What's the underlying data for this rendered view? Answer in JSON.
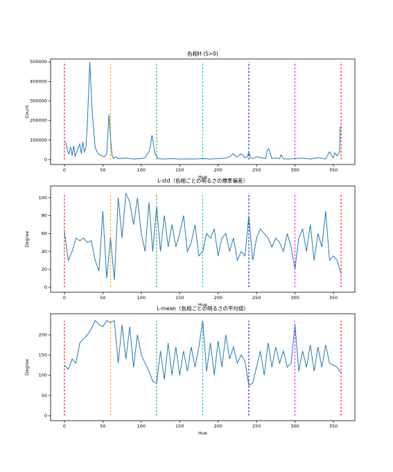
{
  "chart_data": [
    {
      "type": "line",
      "title": "色相H (S>0)",
      "x_label": "Hue",
      "y_label": "Count",
      "x": [
        0,
        2,
        4,
        6,
        8,
        10,
        12,
        14,
        16,
        18,
        20,
        22,
        24,
        26,
        28,
        30,
        33,
        36,
        40,
        44,
        48,
        52,
        55,
        58,
        60,
        62,
        64,
        66,
        70,
        80,
        90,
        100,
        105,
        108,
        110,
        112,
        114,
        118,
        122,
        130,
        140,
        150,
        160,
        170,
        180,
        190,
        200,
        210,
        215,
        218,
        220,
        222,
        225,
        230,
        235,
        238,
        240,
        242,
        245,
        250,
        255,
        262,
        264,
        266,
        270,
        275,
        280,
        282,
        285,
        290,
        300,
        310,
        320,
        330,
        340,
        345,
        348,
        350,
        352,
        355,
        358,
        359
      ],
      "series": [
        {
          "color": "#1f77b4",
          "values": [
            90000,
            85000,
            45000,
            30000,
            65000,
            20000,
            70000,
            15000,
            40000,
            60000,
            80000,
            30000,
            90000,
            40000,
            60000,
            200000,
            500000,
            250000,
            60000,
            30000,
            20000,
            15000,
            30000,
            230000,
            110000,
            20000,
            5000,
            15000,
            5000,
            8000,
            3000,
            5000,
            10000,
            30000,
            40000,
            70000,
            125000,
            30000,
            5000,
            3000,
            5000,
            3000,
            4000,
            3000,
            5000,
            3000,
            5000,
            8000,
            15000,
            25000,
            30000,
            20000,
            15000,
            30000,
            10000,
            15000,
            40000,
            10000,
            5000,
            15000,
            10000,
            5000,
            50000,
            55000,
            5000,
            8000,
            5000,
            25000,
            5000,
            3000,
            5000,
            8000,
            3000,
            10000,
            3000,
            40000,
            20000,
            10000,
            35000,
            20000,
            40000,
            170000
          ]
        }
      ],
      "xlim": [
        -18,
        378
      ],
      "xticks": [
        0,
        50,
        100,
        150,
        200,
        250,
        300,
        350
      ],
      "ylim": [
        -25000,
        515000
      ],
      "yticks": [
        0,
        100000,
        200000,
        300000,
        400000,
        500000
      ],
      "vlines": [
        {
          "x": 0,
          "color": "#ff0000"
        },
        {
          "x": 60,
          "color": "#ffa500"
        },
        {
          "x": 120,
          "color": "#2ca02c"
        },
        {
          "x": 180,
          "color": "#17becf"
        },
        {
          "x": 240,
          "color": "#0000ff"
        },
        {
          "x": 300,
          "color": "#ff00ff"
        },
        {
          "x": 360,
          "color": "#ff0000"
        }
      ]
    },
    {
      "type": "line",
      "title": "L-std（色相ごとの明るさの標準偏差）",
      "x_label": "Hue",
      "y_label": "Degree",
      "x": [
        0,
        5,
        10,
        15,
        20,
        25,
        30,
        35,
        40,
        45,
        50,
        55,
        60,
        65,
        70,
        75,
        80,
        85,
        90,
        95,
        100,
        105,
        110,
        115,
        120,
        125,
        130,
        135,
        140,
        145,
        150,
        155,
        160,
        165,
        170,
        175,
        180,
        185,
        190,
        195,
        200,
        205,
        210,
        215,
        220,
        225,
        230,
        235,
        240,
        245,
        250,
        255,
        260,
        265,
        270,
        275,
        280,
        285,
        290,
        295,
        300,
        305,
        310,
        315,
        320,
        325,
        330,
        335,
        340,
        345,
        350,
        355,
        360
      ],
      "series": [
        {
          "color": "#1f77b4",
          "values": [
            62,
            30,
            40,
            55,
            52,
            55,
            50,
            52,
            30,
            18,
            85,
            10,
            55,
            8,
            100,
            55,
            105,
            95,
            70,
            100,
            60,
            40,
            95,
            40,
            90,
            40,
            80,
            45,
            70,
            45,
            60,
            80,
            40,
            50,
            70,
            35,
            40,
            60,
            55,
            65,
            35,
            55,
            60,
            40,
            55,
            30,
            40,
            35,
            80,
            30,
            55,
            65,
            60,
            55,
            45,
            55,
            50,
            40,
            60,
            45,
            20,
            55,
            65,
            40,
            70,
            30,
            60,
            45,
            85,
            30,
            35,
            30,
            15
          ]
        }
      ],
      "xlim": [
        -18,
        378
      ],
      "xticks": [
        0,
        50,
        100,
        150,
        200,
        250,
        300,
        350
      ],
      "ylim": [
        -5.5,
        113
      ],
      "yticks": [
        0,
        20,
        40,
        60,
        80,
        100
      ],
      "vlines": [
        {
          "x": 0,
          "color": "#ff0000"
        },
        {
          "x": 60,
          "color": "#ffa500"
        },
        {
          "x": 120,
          "color": "#2ca02c"
        },
        {
          "x": 180,
          "color": "#17becf"
        },
        {
          "x": 240,
          "color": "#0000ff"
        },
        {
          "x": 300,
          "color": "#ff00ff"
        },
        {
          "x": 360,
          "color": "#ff0000"
        }
      ]
    },
    {
      "type": "line",
      "title": "L-mean（色相ごとの明るさの平均値）",
      "x_label": "Hue",
      "y_label": "Degree",
      "x": [
        0,
        5,
        10,
        15,
        20,
        25,
        30,
        35,
        40,
        45,
        50,
        55,
        60,
        65,
        70,
        75,
        80,
        85,
        90,
        95,
        100,
        105,
        110,
        115,
        120,
        125,
        130,
        135,
        140,
        145,
        150,
        155,
        160,
        165,
        170,
        175,
        180,
        185,
        190,
        195,
        200,
        205,
        210,
        215,
        220,
        225,
        230,
        235,
        240,
        245,
        250,
        255,
        260,
        265,
        270,
        275,
        280,
        285,
        290,
        295,
        300,
        305,
        310,
        315,
        320,
        325,
        330,
        335,
        340,
        345,
        350,
        355,
        360
      ],
      "series": [
        {
          "color": "#1f77b4",
          "values": [
            125,
            115,
            140,
            130,
            180,
            190,
            200,
            215,
            235,
            225,
            220,
            235,
            230,
            235,
            130,
            225,
            140,
            220,
            120,
            200,
            150,
            130,
            110,
            85,
            80,
            160,
            90,
            180,
            100,
            170,
            100,
            160,
            110,
            170,
            120,
            170,
            235,
            110,
            180,
            100,
            185,
            120,
            200,
            140,
            170,
            130,
            150,
            135,
            75,
            80,
            120,
            160,
            100,
            180,
            120,
            170,
            130,
            160,
            120,
            130,
            225,
            110,
            160,
            120,
            175,
            110,
            170,
            120,
            175,
            130,
            125,
            120,
            105
          ]
        }
      ],
      "xlim": [
        -18,
        378
      ],
      "xticks": [
        0,
        50,
        100,
        150,
        200,
        250,
        300,
        350
      ],
      "ylim": [
        -12,
        252
      ],
      "yticks": [
        0,
        50,
        100,
        150,
        200
      ],
      "vlines": [
        {
          "x": 0,
          "color": "#ff0000"
        },
        {
          "x": 60,
          "color": "#ffa500"
        },
        {
          "x": 120,
          "color": "#2ca02c"
        },
        {
          "x": 180,
          "color": "#17becf"
        },
        {
          "x": 240,
          "color": "#0000ff"
        },
        {
          "x": 300,
          "color": "#ff00ff"
        },
        {
          "x": 360,
          "color": "#ff0000"
        }
      ]
    }
  ]
}
